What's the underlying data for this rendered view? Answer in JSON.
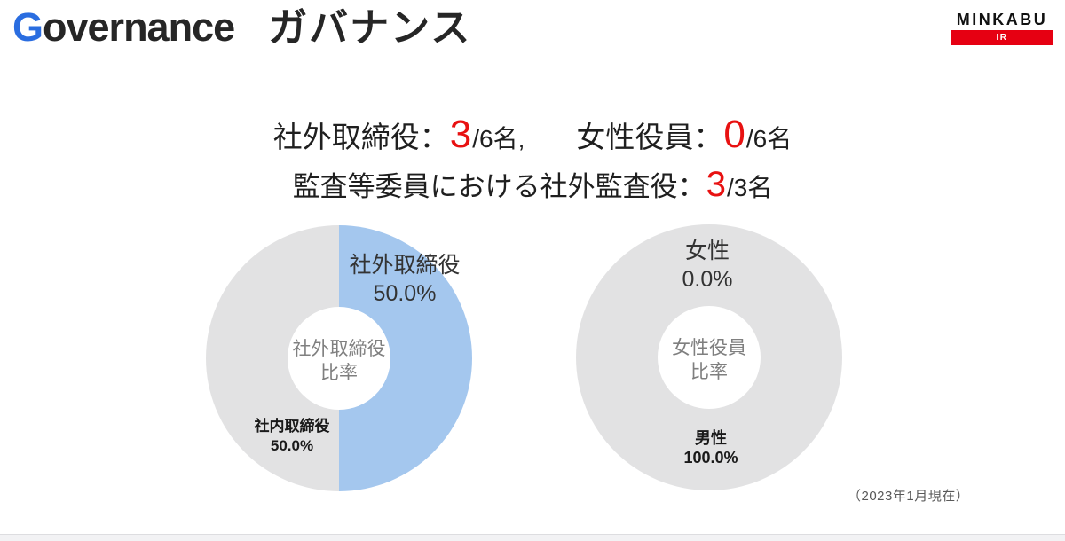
{
  "colors": {
    "accent-blue": "#2a6de0",
    "number-red": "#e81111",
    "brand-red": "#e60012",
    "text-dark": "#262626",
    "text-gray": "#7f7f7f"
  },
  "header": {
    "title_accent": "G",
    "title_rest": "overnance",
    "title_ja": "ガバナンス",
    "logo_brand": "MINKABU",
    "logo_sub": "IR"
  },
  "headline": {
    "outside_label": "社外取締役：",
    "outside_value": "3",
    "outside_total": "/6名,",
    "female_label": "女性役員：",
    "female_value": "0",
    "female_total": "/6名",
    "audit_label": "監査等委員における社外監査役：",
    "audit_value": "3",
    "audit_total": "/3名"
  },
  "footnote": "（2023年1月現在）",
  "chart_data": [
    {
      "type": "pie",
      "subtype": "donut",
      "title": "社外取締役比率",
      "labels": [
        "社外取締役",
        "社内取締役"
      ],
      "values": [
        50.0,
        50.0
      ],
      "value_labels": [
        "50.0%",
        "50.0%"
      ],
      "colors": [
        "#a4c7ee",
        "#e2e2e3"
      ],
      "center_text": [
        "社外取締役",
        "比率"
      ],
      "start_angle_deg": 0,
      "direction": "clockwise"
    },
    {
      "type": "pie",
      "subtype": "donut",
      "title": "女性役員比率",
      "labels": [
        "女性",
        "男性"
      ],
      "values": [
        0.0,
        100.0
      ],
      "value_labels": [
        "0.0%",
        "100.0%"
      ],
      "colors": [
        "#e2e2e3",
        "#e2e2e3"
      ],
      "center_text": [
        "女性役員",
        "比率"
      ],
      "start_angle_deg": 0,
      "direction": "clockwise"
    }
  ]
}
